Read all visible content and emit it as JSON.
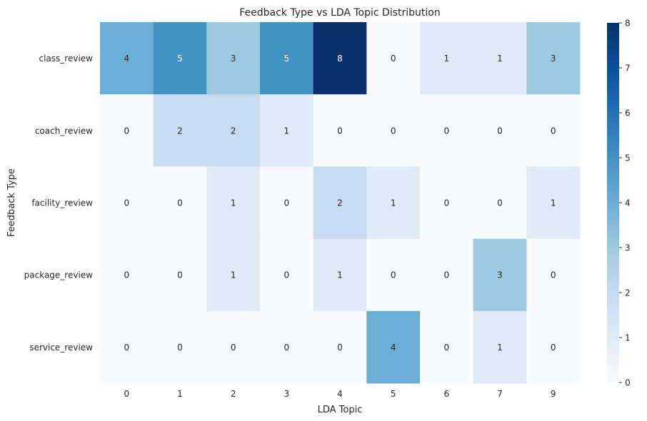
{
  "chart_data": {
    "type": "heatmap",
    "title": "Feedback Type vs LDA Topic Distribution",
    "xlabel": "LDA Topic",
    "ylabel": "Feedback Type",
    "x_categories": [
      "0",
      "1",
      "2",
      "3",
      "4",
      "5",
      "6",
      "7",
      "9"
    ],
    "y_categories": [
      "class_review",
      "coach_review",
      "facility_review",
      "package_review",
      "service_review"
    ],
    "values": [
      [
        4,
        5,
        3,
        5,
        8,
        0,
        1,
        1,
        3
      ],
      [
        0,
        2,
        2,
        1,
        0,
        0,
        0,
        0,
        0
      ],
      [
        0,
        0,
        1,
        0,
        2,
        1,
        0,
        0,
        1
      ],
      [
        0,
        0,
        1,
        0,
        1,
        0,
        0,
        3,
        0
      ],
      [
        0,
        0,
        0,
        0,
        0,
        4,
        0,
        1,
        0
      ]
    ],
    "colorbar": {
      "min": 0,
      "max": 8,
      "ticks": [
        "0",
        "1",
        "2",
        "3",
        "4",
        "5",
        "6",
        "7",
        "8"
      ],
      "colormap": "Blues"
    },
    "annotations": true,
    "grid": false
  }
}
